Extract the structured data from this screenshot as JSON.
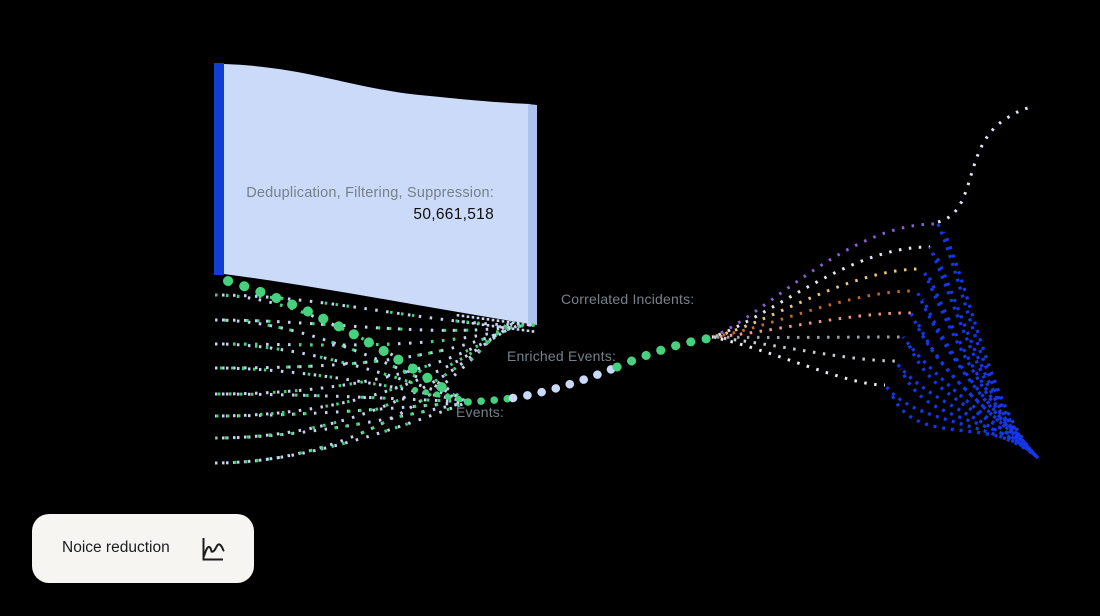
{
  "band": {
    "label": "Deduplication, Filtering, Suppression:",
    "value": "50,661,518"
  },
  "stages": [
    {
      "label": "Correlated Incidents:"
    },
    {
      "label": "Enriched Events:"
    },
    {
      "label": "Events:"
    }
  ],
  "card": {
    "title": "Noice reduction",
    "icon": "line-chart-icon"
  },
  "colors": {
    "background": "#000000",
    "band_fill": "#cbdaf8",
    "band_bar": "#0e3fd2",
    "band_edge": "#aec2ef",
    "dot_white": "#c7d3f0",
    "dot_green": "#45d17e",
    "chain_lavender": "#ccd9f6",
    "blue": "#1537e6",
    "top_curve": "#dde4f4",
    "fan": [
      "#8a5fd8",
      "#e8e5f5",
      "#eec684",
      "#bf6a26",
      "#f4988a",
      "#9aa3ab",
      "#c6ccd4",
      "#e9ecf1"
    ],
    "label_gray": "#76818a",
    "value_black": "#0c0d0e",
    "card_bg": "#f7f5f2",
    "card_text": "#1a1c1e"
  },
  "chart_data": {
    "type": "sankey",
    "style": "dotted-particle-flow",
    "flow_direction": "left-to-right",
    "title": "Noice reduction",
    "removed_flow": {
      "label": "Deduplication, Filtering, Suppression:",
      "value": 50661518,
      "value_text": "50,661,518"
    },
    "stages_in_order": [
      "Events:",
      "Enriched Events:",
      "Correlated Incidents:"
    ],
    "source_streams": 9,
    "fan_out_streams": 8,
    "notes": "Many dotted source streams enter from the left; the bulk (50,661,518) is absorbed by a large light-blue band (deduplication/filtering/suppression); the remainder flows through Events, Enriched Events and Correlated Incidents, fans out into colored dotted arcs and converges as blue streams at bottom right, with one white stream exiting top right.",
    "legend_position": "none",
    "grid": false
  }
}
